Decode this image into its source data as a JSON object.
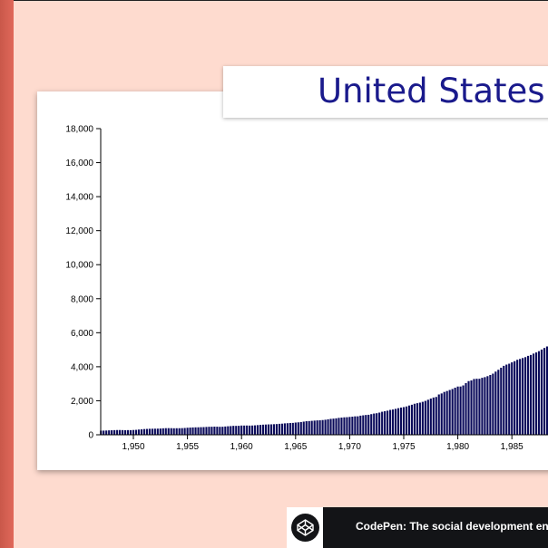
{
  "header": {
    "title": "United States GDP"
  },
  "footer": {
    "text": "CodePen: The social development environment"
  },
  "colors": {
    "bar": "#0a0a5a",
    "title": "#1a1a8c",
    "background": "#fedbcf",
    "accent_strip": "#d9604f"
  },
  "chart_data": {
    "type": "bar",
    "title": "United States GDP",
    "xlabel": "",
    "ylabel": "",
    "ylim": [
      0,
      18000
    ],
    "y_ticks": [
      0,
      2000,
      4000,
      6000,
      8000,
      10000,
      12000,
      14000,
      16000,
      18000
    ],
    "y_tick_labels": [
      "0",
      "2,000",
      "4,000",
      "6,000",
      "8,000",
      "10,000",
      "12,000",
      "14,000",
      "16,000",
      "18,000"
    ],
    "x_ticks": [
      1950,
      1955,
      1960,
      1965,
      1970,
      1975,
      1980,
      1985
    ],
    "x_tick_labels": [
      "1,950",
      "1,955",
      "1,960",
      "1,965",
      "1,970",
      "1,975",
      "1,980",
      "1,985"
    ],
    "x_range": [
      1947.0,
      1988.75
    ],
    "grid": false,
    "x": [
      1947.0,
      1947.25,
      1947.5,
      1947.75,
      1948.0,
      1948.25,
      1948.5,
      1948.75,
      1949.0,
      1949.25,
      1949.5,
      1949.75,
      1950.0,
      1950.25,
      1950.5,
      1950.75,
      1951.0,
      1951.25,
      1951.5,
      1951.75,
      1952.0,
      1952.25,
      1952.5,
      1952.75,
      1953.0,
      1953.25,
      1953.5,
      1953.75,
      1954.0,
      1954.25,
      1954.5,
      1954.75,
      1955.0,
      1955.25,
      1955.5,
      1955.75,
      1956.0,
      1956.25,
      1956.5,
      1956.75,
      1957.0,
      1957.25,
      1957.5,
      1957.75,
      1958.0,
      1958.25,
      1958.5,
      1958.75,
      1959.0,
      1959.25,
      1959.5,
      1959.75,
      1960.0,
      1960.25,
      1960.5,
      1960.75,
      1961.0,
      1961.25,
      1961.5,
      1961.75,
      1962.0,
      1962.25,
      1962.5,
      1962.75,
      1963.0,
      1963.25,
      1963.5,
      1963.75,
      1964.0,
      1964.25,
      1964.5,
      1964.75,
      1965.0,
      1965.25,
      1965.5,
      1965.75,
      1966.0,
      1966.25,
      1966.5,
      1966.75,
      1967.0,
      1967.25,
      1967.5,
      1967.75,
      1968.0,
      1968.25,
      1968.5,
      1968.75,
      1969.0,
      1969.25,
      1969.5,
      1969.75,
      1970.0,
      1970.25,
      1970.5,
      1970.75,
      1971.0,
      1971.25,
      1971.5,
      1971.75,
      1972.0,
      1972.25,
      1972.5,
      1972.75,
      1973.0,
      1973.25,
      1973.5,
      1973.75,
      1974.0,
      1974.25,
      1974.5,
      1974.75,
      1975.0,
      1975.25,
      1975.5,
      1975.75,
      1976.0,
      1976.25,
      1976.5,
      1976.75,
      1977.0,
      1977.25,
      1977.5,
      1977.75,
      1978.0,
      1978.25,
      1978.5,
      1978.75,
      1979.0,
      1979.25,
      1979.5,
      1979.75,
      1980.0,
      1980.25,
      1980.5,
      1980.75,
      1981.0,
      1981.25,
      1981.5,
      1981.75,
      1982.0,
      1982.25,
      1982.5,
      1982.75,
      1983.0,
      1983.25,
      1983.5,
      1983.75,
      1984.0,
      1984.25,
      1984.5,
      1984.75,
      1985.0,
      1985.25,
      1985.5,
      1985.75,
      1986.0,
      1986.25,
      1986.5,
      1986.75,
      1987.0,
      1987.25,
      1987.5,
      1987.75,
      1988.0,
      1988.25,
      1988.5,
      1988.75
    ],
    "values": [
      243,
      246,
      251,
      260,
      266,
      273,
      279,
      280,
      275,
      271,
      274,
      272,
      281,
      290,
      308,
      319,
      336,
      344,
      352,
      356,
      360,
      361,
      368,
      381,
      389,
      390,
      388,
      383,
      385,
      386,
      391,
      400,
      414,
      423,
      432,
      437,
      440,
      447,
      451,
      461,
      470,
      472,
      479,
      475,
      468,
      472,
      486,
      500,
      511,
      525,
      523,
      527,
      543,
      542,
      545,
      540,
      545,
      555,
      568,
      581,
      595,
      602,
      609,
      613,
      622,
      629,
      644,
      654,
      671,
      680,
      692,
      698,
      719,
      732,
      750,
      773,
      797,
      807,
      820,
      834,
      846,
      851,
      866,
      884,
      911,
      936,
      950,
      968,
      994,
      1011,
      1026,
      1034,
      1049,
      1065,
      1083,
      1086,
      1123,
      1144,
      1164,
      1176,
      1213,
      1248,
      1268,
      1305,
      1354,
      1385,
      1417,
      1463,
      1486,
      1524,
      1564,
      1600,
      1626,
      1664,
      1720,
      1765,
      1823,
      1857,
      1891,
      1938,
      1992,
      2060,
      2128,
      2190,
      2223,
      2370,
      2430,
      2520,
      2574,
      2634,
      2691,
      2767,
      2836,
      2838,
      2902,
      3038,
      3155,
      3194,
      3280,
      3294,
      3293,
      3349,
      3389,
      3446,
      3515,
      3594,
      3715,
      3822,
      3942,
      4053,
      4126,
      4179,
      4258,
      4329,
      4409,
      4459,
      4513,
      4565,
      4639,
      4694,
      4774,
      4840,
      4917,
      5010,
      5103,
      5193,
      5301,
      5375
    ]
  }
}
